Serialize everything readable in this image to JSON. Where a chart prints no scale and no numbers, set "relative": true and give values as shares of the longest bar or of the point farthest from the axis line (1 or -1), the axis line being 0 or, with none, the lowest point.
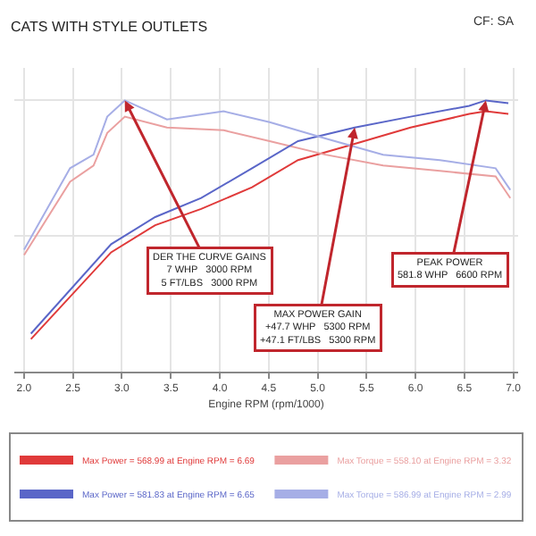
{
  "chart_data": {
    "type": "line",
    "relative": true,
    "title": "CATS WITH STYLE OUTLETS",
    "xlabel": "Engine RPM (rpm/1000)",
    "xlim": [
      1.9,
      7.05
    ],
    "xticks": [
      {
        "value": 2,
        "label": "2.0"
      },
      {
        "value": 2.5,
        "label": "2.5"
      },
      {
        "value": 3,
        "label": "3.0"
      },
      {
        "value": 3.5,
        "label": "3.5"
      },
      {
        "value": 4,
        "label": "4.0"
      },
      {
        "value": 4.5,
        "label": "4.5"
      },
      {
        "value": 5,
        "label": "5.0"
      },
      {
        "value": 5.5,
        "label": "5.5"
      },
      {
        "value": 6,
        "label": "6.0"
      },
      {
        "value": 6.5,
        "label": "6.5"
      },
      {
        "value": 7,
        "label": "7.0"
      }
    ],
    "grid": true,
    "legend": "bottom",
    "marker": "none",
    "line_style": "solid",
    "series": [
      {
        "name": "Max Power = 568.99 at Engine RPM = 6.69",
        "color": "#e03a3a",
        "x": [
          2.07,
          2.89,
          3.34,
          3.81,
          4.33,
          4.8,
          5.38,
          5.95,
          6.55,
          6.72,
          6.95
        ],
        "values": [
          0.12,
          0.44,
          0.54,
          0.6,
          0.68,
          0.78,
          0.84,
          0.9,
          0.95,
          0.96,
          0.95
        ]
      },
      {
        "name": "Max Torque = 558.10 at Engine RPM = 3.32",
        "color": "#eaa0a0",
        "x": [
          2.0,
          2.47,
          2.71,
          2.85,
          3.03,
          3.46,
          4.04,
          4.51,
          5.08,
          5.67,
          6.25,
          6.82,
          6.97
        ],
        "values": [
          0.43,
          0.7,
          0.76,
          0.88,
          0.94,
          0.9,
          0.89,
          0.85,
          0.8,
          0.76,
          0.74,
          0.72,
          0.64
        ]
      },
      {
        "name": "Max Power = 581.83 at Engine RPM = 6.65",
        "color": "#5a66c8",
        "x": [
          2.07,
          2.89,
          3.34,
          3.81,
          4.33,
          4.8,
          5.38,
          5.95,
          6.55,
          6.72,
          6.95
        ],
        "values": [
          0.14,
          0.47,
          0.57,
          0.64,
          0.75,
          0.85,
          0.9,
          0.94,
          0.98,
          1.0,
          0.99
        ]
      },
      {
        "name": "Max Torque = 586.99 at Engine RPM = 2.99",
        "color": "#a6aee6",
        "x": [
          2.0,
          2.47,
          2.71,
          2.85,
          3.03,
          3.46,
          4.04,
          4.51,
          5.08,
          5.67,
          6.25,
          6.82,
          6.97
        ],
        "values": [
          0.45,
          0.75,
          0.8,
          0.94,
          1.0,
          0.93,
          0.96,
          0.92,
          0.86,
          0.8,
          0.78,
          0.75,
          0.67
        ]
      }
    ],
    "annotations": [
      "CF: SA",
      {
        "text": "DER THE CURVE GAINS\n7 WHP   3000 RPM\n5 FT/LBS   3000 RPM",
        "x": 3.03,
        "y": 1.0
      },
      {
        "text": "MAX POWER GAIN\n+47.7 WHP   5300 RPM\n+47.1 FT/LBS   5300 RPM",
        "x": 5.38,
        "y": 0.9
      },
      {
        "text": "PEAK POWER\n581.8 WHP   6600 RPM",
        "x": 6.72,
        "y": 1.0
      }
    ]
  }
}
